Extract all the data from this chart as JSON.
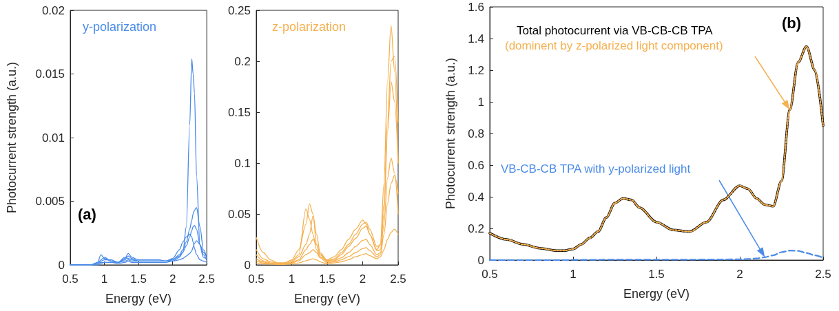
{
  "chart_data": [
    {
      "type": "line",
      "xlabel": "Energy (eV)",
      "ylabel": "Photocurrent strength (a.u.)",
      "xlim": [
        0.5,
        2.5
      ],
      "xticks": [
        0.5,
        1,
        1.5,
        2,
        2.5
      ],
      "ylim": [
        0,
        0.02
      ],
      "yticks": [
        0,
        0.005,
        0.01,
        0.015,
        0.02
      ],
      "grid": false,
      "marker": "none",
      "annotations": [
        "y-polarization",
        "(a)"
      ],
      "x": [
        0.5,
        0.6,
        0.7,
        0.8,
        0.9,
        0.95,
        1.0,
        1.1,
        1.2,
        1.3,
        1.35,
        1.4,
        1.5,
        1.6,
        1.7,
        1.8,
        1.9,
        2.0,
        2.1,
        2.15,
        2.2,
        2.25,
        2.28,
        2.3,
        2.32,
        2.35,
        2.4,
        2.45,
        2.5
      ],
      "series": [
        {
          "color": "#4a8be8",
          "values": [
            0,
            0,
            0,
            0,
            0.0001,
            0.0002,
            0.0002,
            0.0002,
            0.0002,
            0.0003,
            0.0004,
            0.0003,
            0.0003,
            0.0003,
            0.0003,
            0.0003,
            0.0003,
            0.0003,
            0.0006,
            0.001,
            0.003,
            0.011,
            0.0162,
            0.015,
            0.0135,
            0.007,
            0.0015,
            0.0006,
            0.0004
          ]
        },
        {
          "color": "#4a8be8",
          "values": [
            0,
            0,
            0,
            0,
            0.0002,
            0.0008,
            0.0005,
            0.0003,
            0.0002,
            0.0005,
            0.0009,
            0.0006,
            0.0004,
            0.0004,
            0.0004,
            0.0004,
            0.0003,
            0.0004,
            0.0008,
            0.0012,
            0.0018,
            0.0028,
            0.0035,
            0.004,
            0.0043,
            0.0045,
            0.003,
            0.0012,
            0.0006
          ]
        },
        {
          "color": "#4a8be8",
          "values": [
            0,
            0,
            0,
            0,
            0.0001,
            0.0004,
            0.0006,
            0.0003,
            0.0002,
            0.0004,
            0.0007,
            0.0005,
            0.0003,
            0.0003,
            0.0003,
            0.0003,
            0.0003,
            0.0005,
            0.0012,
            0.0018,
            0.0022,
            0.0024,
            0.0022,
            0.0018,
            0.0013,
            0.0008,
            0.0004,
            0.0003,
            0.0002
          ]
        },
        {
          "color": "#4a8be8",
          "values": [
            0,
            0,
            0,
            0,
            0.0001,
            0.0003,
            0.0004,
            0.0004,
            0.0002,
            0.0006,
            0.0005,
            0.0004,
            0.0003,
            0.0003,
            0.0003,
            0.0003,
            0.0003,
            0.0004,
            0.0007,
            0.001,
            0.0015,
            0.0022,
            0.0027,
            0.003,
            0.0031,
            0.0028,
            0.0016,
            0.0008,
            0.0004
          ]
        },
        {
          "color": "#4a8be8",
          "values": [
            0,
            0,
            0,
            0,
            0,
            0.0001,
            0.0002,
            0.0002,
            0.0001,
            0.0002,
            0.0003,
            0.0002,
            0.0002,
            0.0002,
            0.0002,
            0.0002,
            0.0002,
            0.0003,
            0.0004,
            0.0005,
            0.0007,
            0.0009,
            0.0011,
            0.0014,
            0.0017,
            0.0019,
            0.0016,
            0.001,
            0.0006
          ]
        }
      ]
    },
    {
      "type": "line",
      "xlabel": "Energy (eV)",
      "xlim": [
        0.5,
        2.5
      ],
      "xticks": [
        0.5,
        1,
        1.5,
        2,
        2.5
      ],
      "ylim": [
        0,
        0.25
      ],
      "yticks": [
        0,
        0.05,
        0.1,
        0.15,
        0.2,
        0.25
      ],
      "grid": false,
      "marker": "none",
      "annotations": [
        "z-polarization"
      ],
      "x": [
        0.5,
        0.6,
        0.7,
        0.8,
        0.9,
        1.0,
        1.1,
        1.2,
        1.25,
        1.3,
        1.35,
        1.4,
        1.5,
        1.6,
        1.7,
        1.8,
        1.9,
        2.0,
        2.05,
        2.1,
        2.2,
        2.25,
        2.3,
        2.35,
        2.4,
        2.45,
        2.5
      ],
      "series": [
        {
          "color": "#f5b04f",
          "values": [
            0.027,
            0.012,
            0.005,
            0.002,
            0.002,
            0.005,
            0.015,
            0.04,
            0.06,
            0.05,
            0.02,
            0.01,
            0.005,
            0.008,
            0.015,
            0.025,
            0.035,
            0.044,
            0.04,
            0.03,
            0.015,
            0.02,
            0.08,
            0.18,
            0.235,
            0.19,
            0.1
          ]
        },
        {
          "color": "#f5b04f",
          "values": [
            0.015,
            0.006,
            0.003,
            0.002,
            0.002,
            0.004,
            0.01,
            0.055,
            0.045,
            0.03,
            0.015,
            0.008,
            0.004,
            0.006,
            0.012,
            0.02,
            0.03,
            0.04,
            0.042,
            0.035,
            0.018,
            0.02,
            0.06,
            0.14,
            0.2,
            0.205,
            0.14
          ]
        },
        {
          "color": "#f5b04f",
          "values": [
            0.01,
            0.004,
            0.002,
            0.001,
            0.001,
            0.003,
            0.008,
            0.02,
            0.03,
            0.048,
            0.03,
            0.012,
            0.004,
            0.005,
            0.01,
            0.018,
            0.026,
            0.036,
            0.038,
            0.03,
            0.014,
            0.015,
            0.05,
            0.13,
            0.18,
            0.16,
            0.1
          ]
        },
        {
          "color": "#f5b04f",
          "values": [
            0.006,
            0.003,
            0.001,
            0.001,
            0.001,
            0.002,
            0.005,
            0.015,
            0.02,
            0.025,
            0.02,
            0.01,
            0.003,
            0.004,
            0.007,
            0.012,
            0.018,
            0.024,
            0.025,
            0.02,
            0.01,
            0.012,
            0.04,
            0.085,
            0.105,
            0.09,
            0.05
          ]
        },
        {
          "color": "#f5b04f",
          "values": [
            0.004,
            0.002,
            0.001,
            0.001,
            0.001,
            0.002,
            0.004,
            0.01,
            0.012,
            0.015,
            0.012,
            0.007,
            0.002,
            0.003,
            0.005,
            0.008,
            0.012,
            0.016,
            0.017,
            0.014,
            0.008,
            0.01,
            0.03,
            0.06,
            0.08,
            0.088,
            0.07
          ]
        },
        {
          "color": "#f5b04f",
          "values": [
            0.002,
            0.001,
            0.001,
            0.0005,
            0.0005,
            0.001,
            0.002,
            0.004,
            0.005,
            0.006,
            0.005,
            0.003,
            0.001,
            0.002,
            0.003,
            0.005,
            0.008,
            0.01,
            0.011,
            0.009,
            0.006,
            0.008,
            0.015,
            0.025,
            0.032,
            0.035,
            0.03
          ]
        }
      ]
    },
    {
      "type": "line",
      "xlabel": "Energy (eV)",
      "ylabel": "Photocurrent strength (a.u.)",
      "xlim": [
        0.5,
        2.5
      ],
      "xticks": [
        0.5,
        1,
        1.5,
        2,
        2.5
      ],
      "ylim": [
        0,
        1.6
      ],
      "yticks": [
        0,
        0.2,
        0.4,
        0.6,
        0.8,
        1,
        1.2,
        1.4,
        1.6
      ],
      "grid": false,
      "marker": "none",
      "annotations": [
        "Total photocurrent via VB-CB-CB TPA",
        "(dominent by z-polarized light component)",
        "VB-CB-CB TPA with y-polarized light",
        "(b)"
      ],
      "x": [
        0.5,
        0.6,
        0.7,
        0.8,
        0.9,
        0.95,
        1.0,
        1.05,
        1.1,
        1.15,
        1.2,
        1.25,
        1.3,
        1.35,
        1.4,
        1.5,
        1.6,
        1.7,
        1.8,
        1.9,
        2.0,
        2.05,
        2.1,
        2.15,
        2.2,
        2.25,
        2.3,
        2.35,
        2.4,
        2.45,
        2.5
      ],
      "series": [
        {
          "color": "#000000",
          "line_style": "solid",
          "values": [
            0.17,
            0.13,
            0.1,
            0.075,
            0.06,
            0.06,
            0.07,
            0.1,
            0.14,
            0.18,
            0.27,
            0.36,
            0.39,
            0.38,
            0.33,
            0.24,
            0.19,
            0.18,
            0.24,
            0.38,
            0.47,
            0.45,
            0.39,
            0.35,
            0.34,
            0.5,
            0.95,
            1.25,
            1.35,
            1.2,
            0.85
          ]
        },
        {
          "color": "#f5b04f",
          "line_style": "dotted",
          "values": [
            0.17,
            0.13,
            0.1,
            0.075,
            0.06,
            0.06,
            0.07,
            0.1,
            0.14,
            0.18,
            0.27,
            0.36,
            0.39,
            0.38,
            0.33,
            0.24,
            0.19,
            0.18,
            0.24,
            0.38,
            0.47,
            0.45,
            0.39,
            0.35,
            0.34,
            0.5,
            0.95,
            1.25,
            1.35,
            1.2,
            0.85
          ]
        },
        {
          "color": "#4a8be8",
          "line_style": "dashed",
          "values": [
            0,
            0,
            0,
            0,
            0,
            0,
            0.002,
            0.002,
            0.002,
            0.002,
            0.003,
            0.003,
            0.003,
            0.003,
            0.003,
            0.003,
            0.003,
            0.003,
            0.004,
            0.004,
            0.005,
            0.007,
            0.01,
            0.018,
            0.03,
            0.05,
            0.06,
            0.058,
            0.045,
            0.03,
            0.015
          ]
        }
      ]
    }
  ]
}
